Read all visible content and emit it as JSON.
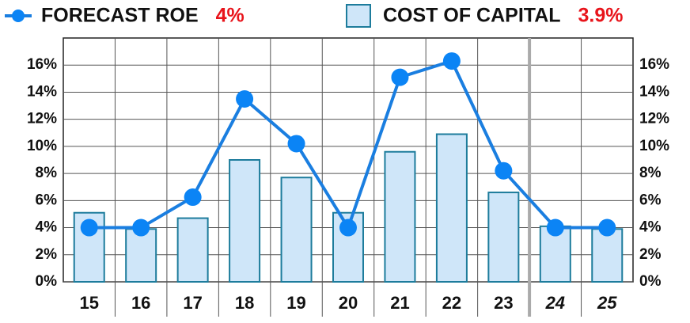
{
  "chart_data": {
    "type": "bar_line",
    "categories": [
      "15",
      "16",
      "17",
      "18",
      "19",
      "20",
      "21",
      "22",
      "23",
      "24",
      "25"
    ],
    "series": [
      {
        "name": "FORECAST ROE",
        "summary_label": "4%",
        "type": "line",
        "color": "#1a7ee0",
        "values": [
          4,
          4,
          6.25,
          13.5,
          10.2,
          4,
          15.1,
          16.3,
          8.2,
          4,
          4
        ]
      },
      {
        "name": "COST OF CAPITAL",
        "summary_label": "3.9%",
        "type": "bar",
        "color": "#cfe6f9",
        "values": [
          5.1,
          3.9,
          4.7,
          9.0,
          7.7,
          5.1,
          9.6,
          10.9,
          6.6,
          4.1,
          3.9
        ]
      }
    ],
    "ylim": [
      0,
      18
    ],
    "yticks": [
      {
        "value": 0,
        "label": "0%"
      },
      {
        "value": 2,
        "label": "2%"
      },
      {
        "value": 4,
        "label": "4%"
      },
      {
        "value": 6,
        "label": "6%"
      },
      {
        "value": 8,
        "label": "8%"
      },
      {
        "value": 10,
        "label": "10%"
      },
      {
        "value": 12,
        "label": "12%"
      },
      {
        "value": 14,
        "label": "14%"
      },
      {
        "value": 16,
        "label": "16%"
      }
    ],
    "y2lim": [
      0,
      18
    ],
    "y2ticks": [
      {
        "value": 0,
        "label": "0%"
      },
      {
        "value": 2,
        "label": "2%"
      },
      {
        "value": 4,
        "label": "4%"
      },
      {
        "value": 6,
        "label": "6%"
      },
      {
        "value": 8,
        "label": "8%"
      },
      {
        "value": 10,
        "label": "10%"
      },
      {
        "value": 12,
        "label": "12%"
      },
      {
        "value": 14,
        "label": "14%"
      },
      {
        "value": 16,
        "label": "16%"
      }
    ],
    "grid": true
  }
}
